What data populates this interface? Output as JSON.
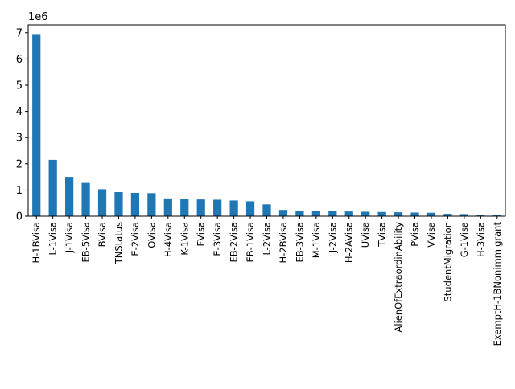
{
  "chart_data": {
    "type": "bar",
    "categories": [
      "H-1BVisa",
      "L-1Visa",
      "J-1Visa",
      "EB-5Visa",
      "BVisa",
      "TNStatus",
      "E-2Visa",
      "OVisa",
      "H-4Visa",
      "K-1Visa",
      "FVisa",
      "E-3Visa",
      "EB-2Visa",
      "EB-1Visa",
      "L-2Visa",
      "H-2BVisa",
      "EB-3Visa",
      "M-1Visa",
      "J-2Visa",
      "H-2AVisa",
      "UVisa",
      "TVisa",
      "AlienOfExtraordinAbility",
      "PVisa",
      "VVisa",
      "StudentMigration",
      "G-1Visa",
      "H-3Visa",
      "ExemptH-1BNonimmigrant"
    ],
    "values": [
      6950000,
      2150000,
      1500000,
      1270000,
      1030000,
      920000,
      890000,
      880000,
      680000,
      670000,
      640000,
      630000,
      600000,
      570000,
      450000,
      240000,
      210000,
      200000,
      190000,
      180000,
      170000,
      160000,
      150000,
      140000,
      130000,
      90000,
      80000,
      60000,
      30000
    ],
    "title": "",
    "xlabel": "",
    "ylabel": "",
    "ylim": [
      0,
      7300000
    ],
    "yticks": [
      0,
      1,
      2,
      3,
      4,
      5,
      6,
      7
    ],
    "yticks_scale": 1000000,
    "scale_label": "1e6",
    "grid": false,
    "bar_color": "#1f77b4"
  }
}
